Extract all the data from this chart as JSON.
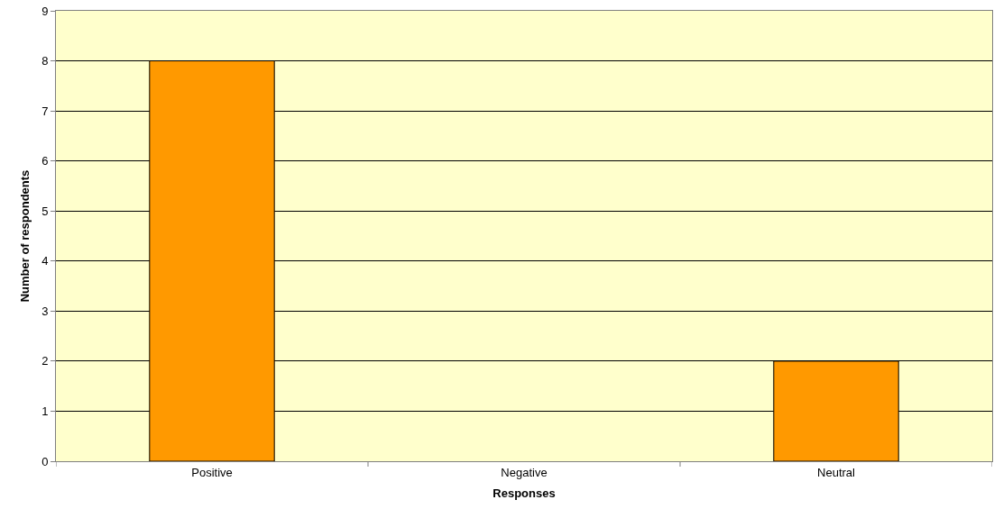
{
  "chart_data": {
    "type": "bar",
    "xlabel": "Responses",
    "ylabel": "Number of respondents",
    "categories": [
      "Positive",
      "Negative",
      "Neutral"
    ],
    "values": [
      8,
      0,
      2
    ],
    "color": "#ff9900",
    "ylim": [
      0,
      9
    ],
    "yticks": [
      0,
      1,
      2,
      3,
      4,
      5,
      6,
      7,
      8,
      9
    ],
    "grid": "y"
  }
}
